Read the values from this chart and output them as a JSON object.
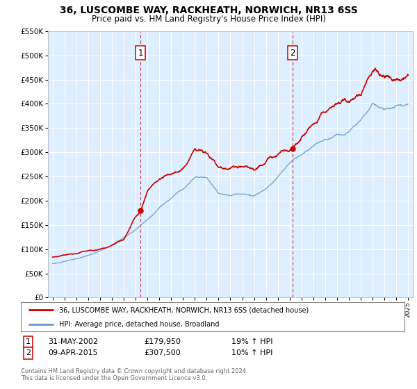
{
  "title": "36, LUSCOMBE WAY, RACKHEATH, NORWICH, NR13 6SS",
  "subtitle": "Price paid vs. HM Land Registry's House Price Index (HPI)",
  "hpi_label": "HPI: Average price, detached house, Broadland",
  "price_label": "36, LUSCOMBE WAY, RACKHEATH, NORWICH, NR13 6SS (detached house)",
  "red_color": "#cc0000",
  "blue_color": "#6699cc",
  "bg_color": "#ddeeff",
  "sale1_year": 2002.42,
  "sale1_price": 179950,
  "sale2_year": 2015.27,
  "sale2_price": 307500,
  "legend_row1_date": "31-MAY-2002",
  "legend_row1_price": "£179,950",
  "legend_row1_pct": "19% ↑ HPI",
  "legend_row2_date": "09-APR-2015",
  "legend_row2_price": "£307,500",
  "legend_row2_pct": "10% ↑ HPI",
  "footer1": "Contains HM Land Registry data © Crown copyright and database right 2024.",
  "footer2": "This data is licensed under the Open Government Licence v3.0.",
  "ylim_max": 550000,
  "ylim_min": 0,
  "xmin": 1994.6,
  "xmax": 2025.4
}
